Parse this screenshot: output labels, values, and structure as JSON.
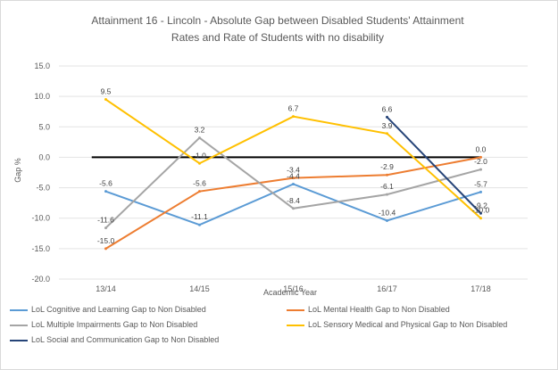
{
  "chart_data": {
    "type": "line",
    "title_line1": "Attainment 16 - Lincoln - Absolute Gap between Disabled Students' Attainment",
    "title_line2": "Rates and Rate of Students with no disability",
    "xlabel": "Academic Year",
    "ylabel": "Gap %",
    "categories": [
      "13/14",
      "14/15",
      "15/16",
      "16/17",
      "17/18"
    ],
    "y_ticks": [
      "15.0",
      "10.0",
      "5.0",
      "0.0",
      "-5.0",
      "-10.0",
      "-15.0",
      "-20.0"
    ],
    "ylim": [
      -20,
      15
    ],
    "grid": true,
    "legend_position": "bottom",
    "zero_line": true,
    "series": [
      {
        "name": "LoL Cognitive and Learning Gap to Non Disabled",
        "color": "#5b9bd5",
        "values": [
          -5.6,
          -11.1,
          -4.4,
          -10.4,
          -5.7
        ],
        "labels": [
          "-5.6",
          "-11.1",
          "-4.4",
          "-10.4",
          "-5.7"
        ]
      },
      {
        "name": "LoL Mental Health Gap to Non Disabled",
        "color": "#ed7d31",
        "values": [
          -15.0,
          -5.6,
          -3.4,
          -2.9,
          0.0
        ],
        "labels": [
          "-15.0",
          "-5.6",
          "-3.4",
          "-2.9",
          "0.0"
        ]
      },
      {
        "name": "LoL Multiple Impairments Gap to Non Disabled",
        "color": "#a5a5a5",
        "values": [
          -11.6,
          3.2,
          -8.4,
          -6.1,
          -2.0
        ],
        "labels": [
          "-11.6",
          "3.2",
          "-8.4",
          "-6.1",
          "-2.0"
        ]
      },
      {
        "name": "LoL Sensory Medical and Physical Gap to Non Disabled",
        "color": "#ffc000",
        "values": [
          9.5,
          -1.0,
          6.7,
          3.9,
          -10.0
        ],
        "labels": [
          "9.5",
          "-1.0",
          "6.7",
          "3.9",
          "-10.0"
        ]
      },
      {
        "name": "LoL Social and Communication Gap to Non Disabled",
        "color": "#264478",
        "values": [
          null,
          null,
          null,
          6.6,
          -9.2
        ],
        "labels": [
          "",
          "",
          "",
          "6.6",
          "-9.2"
        ]
      }
    ]
  }
}
